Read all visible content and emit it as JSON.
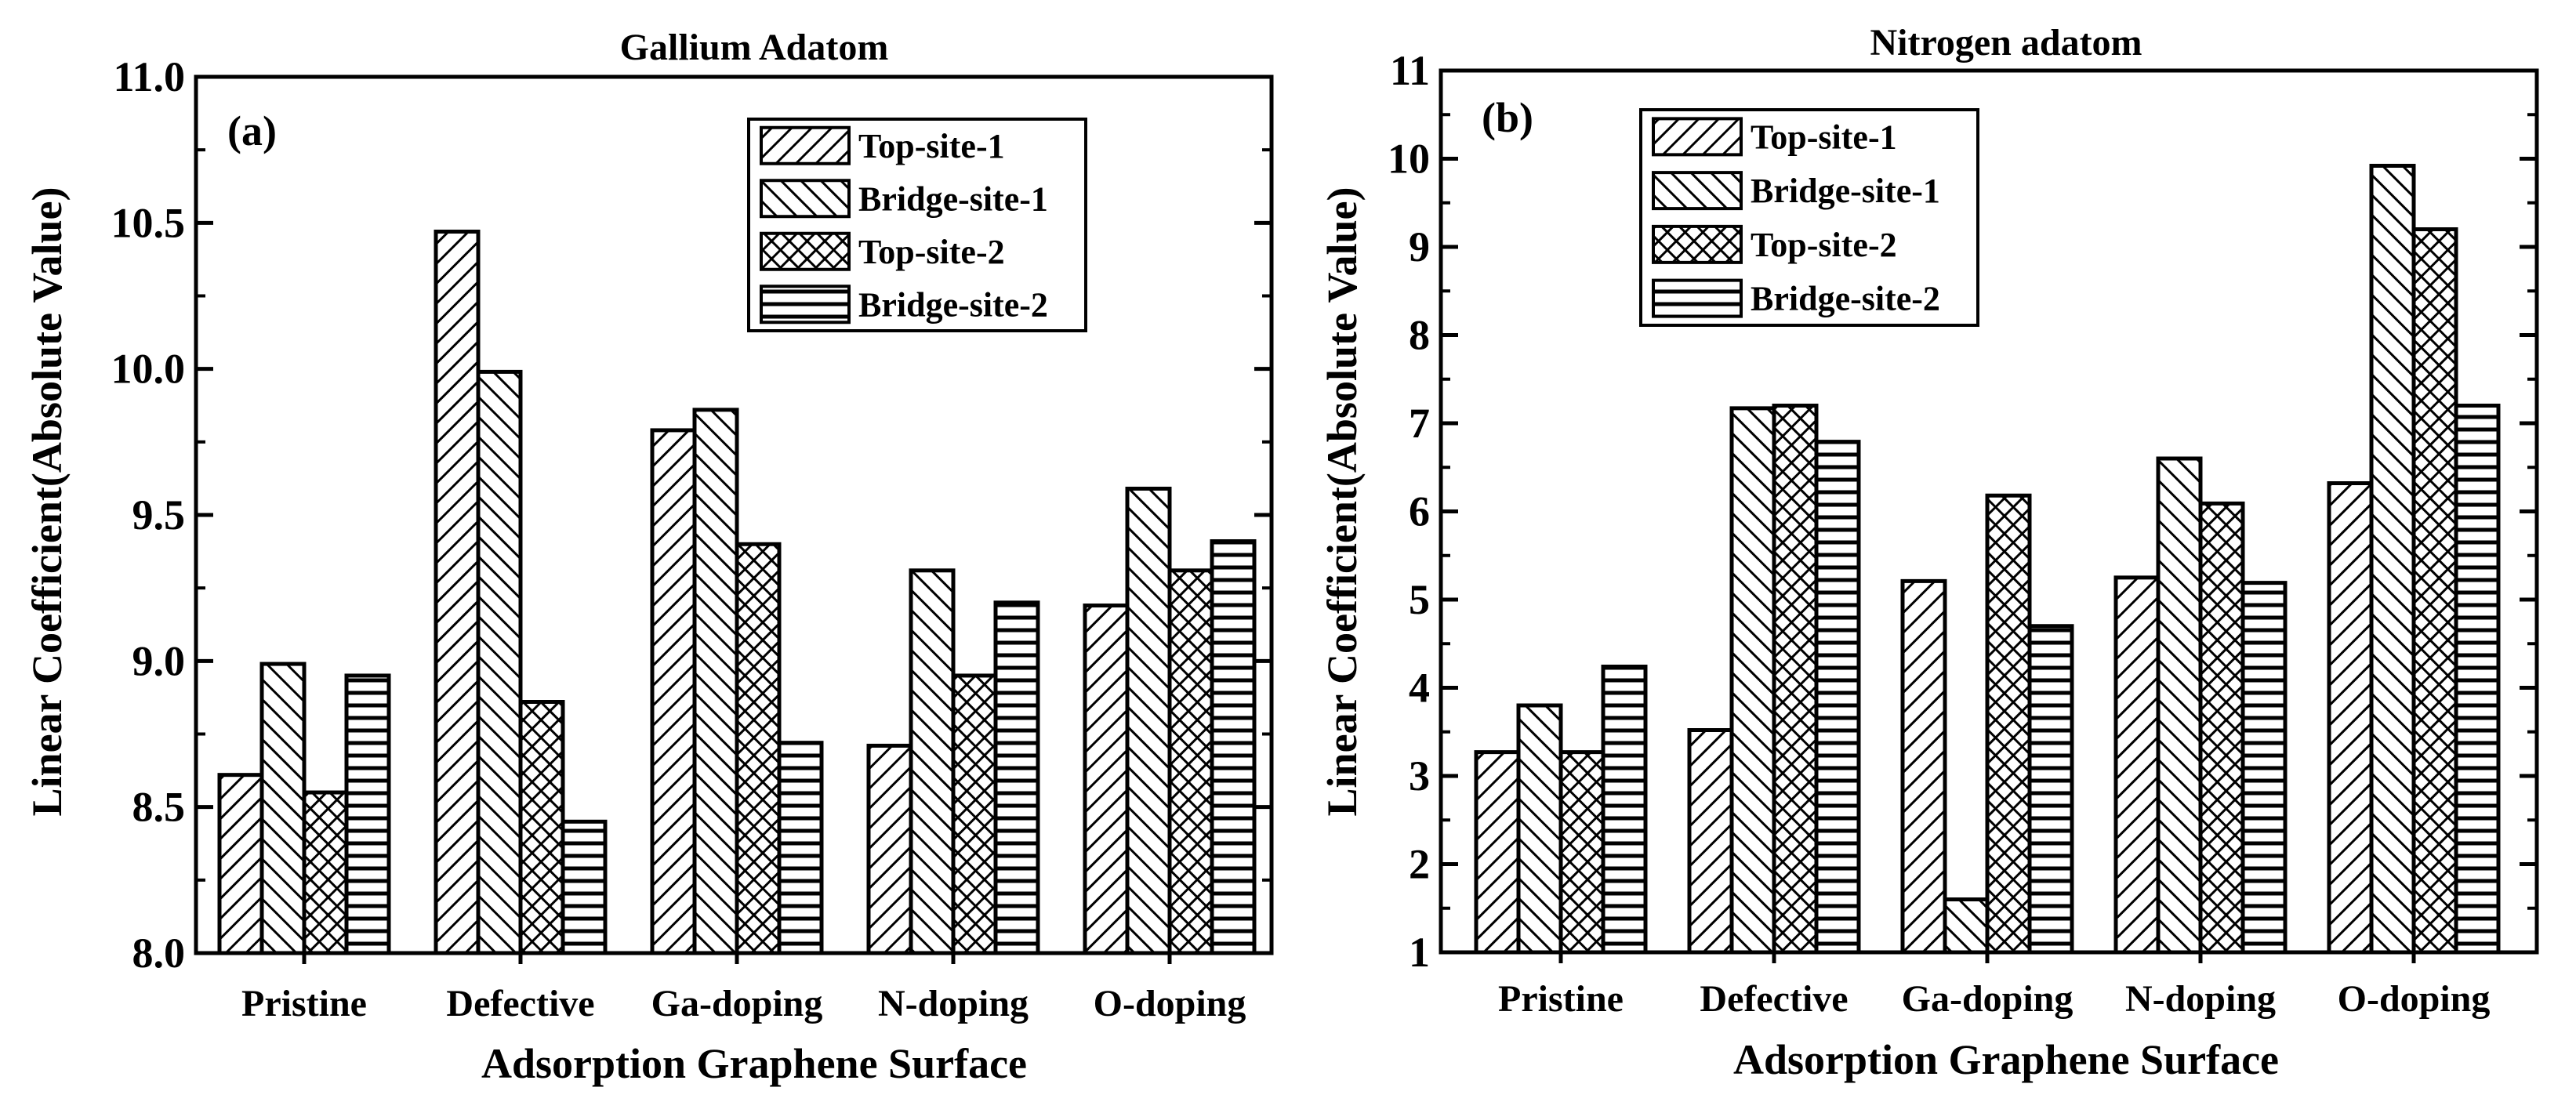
{
  "chart_data": [
    {
      "type": "bar",
      "panel_label": "(a)",
      "title": "Gallium Adatom",
      "xlabel": "Adsorption Graphene Surface",
      "ylabel": "Linear Coefficient(Absolute Value)",
      "categories": [
        "Pristine",
        "Defective",
        "Ga-doping",
        "N-doping",
        "O-doping"
      ],
      "ylim": [
        8.0,
        11.0
      ],
      "yticks": [
        "8.0",
        "8.5",
        "9.0",
        "9.5",
        "10.0",
        "10.5",
        "11.0"
      ],
      "grid": false,
      "legend_position": "top-right",
      "series": [
        {
          "name": "Top-site-1",
          "pattern": "diagonal-forward",
          "values": [
            8.61,
            10.47,
            9.79,
            8.71,
            9.19
          ]
        },
        {
          "name": "Bridge-site-1",
          "pattern": "diagonal-backward",
          "values": [
            8.99,
            9.99,
            9.86,
            9.31,
            9.59
          ]
        },
        {
          "name": "Top-site-2",
          "pattern": "crosshatch",
          "values": [
            8.55,
            8.86,
            9.4,
            8.95,
            9.31
          ]
        },
        {
          "name": "Bridge-site-2",
          "pattern": "horizontal",
          "values": [
            8.95,
            8.45,
            8.72,
            9.2,
            9.41
          ]
        }
      ]
    },
    {
      "type": "bar",
      "panel_label": "(b)",
      "title": "Nitrogen adatom",
      "xlabel": "Adsorption Graphene Surface",
      "ylabel": "Linear Coefficient(Absolute Value)",
      "categories": [
        "Pristine",
        "Defective",
        "Ga-doping",
        "N-doping",
        "O-doping"
      ],
      "ylim": [
        1,
        11
      ],
      "yticks": [
        "1",
        "2",
        "3",
        "4",
        "5",
        "6",
        "7",
        "8",
        "9",
        "10",
        "11"
      ],
      "grid": false,
      "legend_position": "top-left",
      "series": [
        {
          "name": "Top-site-1",
          "pattern": "diagonal-forward",
          "values": [
            3.27,
            3.52,
            5.21,
            5.25,
            6.32
          ]
        },
        {
          "name": "Bridge-site-1",
          "pattern": "diagonal-backward",
          "values": [
            3.8,
            7.17,
            1.6,
            6.6,
            9.92
          ]
        },
        {
          "name": "Top-site-2",
          "pattern": "crosshatch",
          "values": [
            3.27,
            7.2,
            6.18,
            6.09,
            9.2
          ]
        },
        {
          "name": "Bridge-site-2",
          "pattern": "horizontal",
          "values": [
            4.24,
            6.79,
            4.7,
            5.19,
            7.2
          ]
        }
      ]
    }
  ]
}
